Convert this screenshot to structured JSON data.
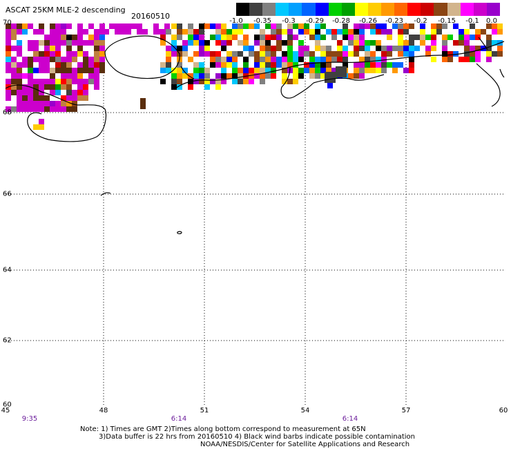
{
  "header": {
    "title": "ASCAT 25KM MLE-2 descending",
    "date": "20160510"
  },
  "colorbar": {
    "colors": [
      "#000000",
      "#404040",
      "#808080",
      "#00c8ff",
      "#00a0ff",
      "#0064ff",
      "#0000ff",
      "#00d000",
      "#00a000",
      "#ffff00",
      "#ffcc00",
      "#ff9900",
      "#ff6600",
      "#ff0000",
      "#cc0000",
      "#8b4513",
      "#d2b48c",
      "#ff00ff",
      "#cc00cc",
      "#9900cc"
    ],
    "tick_labels": [
      "-1.0",
      "-0.35",
      "-0.3",
      "-0.29",
      "-0.28",
      "-0.26",
      "-0.23",
      "-0.2",
      "-0.15",
      "-0.1",
      "0.0"
    ]
  },
  "map": {
    "lat_labels": [
      "70",
      "68",
      "66",
      "64",
      "62",
      "60"
    ],
    "lon_labels": [
      "45",
      "48",
      "51",
      "54",
      "57",
      "60"
    ],
    "time_labels": [
      "9:35",
      "6:14",
      "6:14"
    ],
    "grid": true
  },
  "footer": {
    "line1": "Note: 1) Times are GMT 2)Times along bottom correspond to measurement at 65N",
    "line2": "3)Data buffer is 22 hrs from 20160510 4) Black wind barbs indicate possible contamination",
    "line3": "NOAA/NESDIS/Center for Satellite Applications and Research"
  }
}
